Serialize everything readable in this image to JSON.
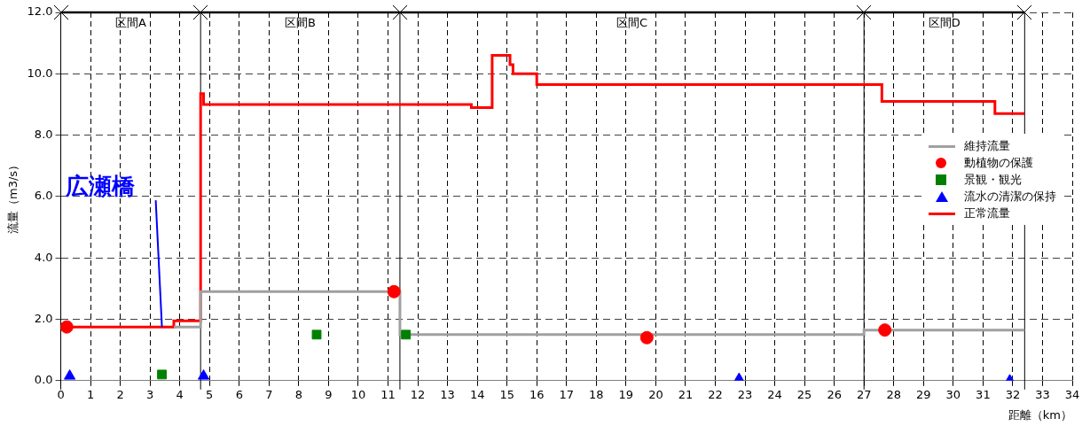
{
  "chart_data": {
    "type": "scatter",
    "xlabel": "距離（km）",
    "ylabel": "流量（m3/s）",
    "xlim": [
      0,
      34
    ],
    "xticks": [
      0,
      1,
      2,
      3,
      4,
      5,
      6,
      7,
      8,
      9,
      10,
      11,
      12,
      13,
      14,
      15,
      16,
      17,
      18,
      19,
      20,
      21,
      22,
      23,
      24,
      25,
      26,
      27,
      28,
      29,
      30,
      31,
      32,
      33,
      34
    ],
    "ylim": [
      0,
      12
    ],
    "yticks": [
      {
        "value": 0,
        "label": "0.0"
      },
      {
        "value": 2,
        "label": "2.0"
      },
      {
        "value": 4,
        "label": "4.0"
      },
      {
        "value": 6,
        "label": "6.0"
      },
      {
        "value": 8,
        "label": "8.0"
      },
      {
        "value": 10,
        "label": "10.0"
      },
      {
        "value": 12,
        "label": "12.0"
      }
    ],
    "grid": true,
    "legend": "right",
    "ref_lines": [
      {
        "axis": "x",
        "value": 0,
        "color": "#000000"
      },
      {
        "axis": "x",
        "value": 4.7,
        "color": "#000000"
      },
      {
        "axis": "x",
        "value": 11.4,
        "color": "#000000"
      },
      {
        "axis": "x",
        "value": 27.0,
        "color": "#000000"
      },
      {
        "axis": "x",
        "value": 32.4,
        "color": "#000000"
      }
    ],
    "annotations": [
      {
        "text": "広瀬橋",
        "x": 3.4,
        "y": 1.75
      },
      "区間A",
      "区間B",
      "区間C",
      "区間D"
    ],
    "series": [
      {
        "name": "維持流量",
        "type": "step",
        "color": "#a0a0a0",
        "marker": "none",
        "x": [
          3.8,
          4.7,
          11.4,
          27.0,
          32.4
        ],
        "values": [
          1.75,
          2.9,
          1.5,
          1.65,
          1.65
        ]
      },
      {
        "name": "動植物の保護",
        "type": "scatter",
        "color": "#ff0000",
        "marker": "circle",
        "x": [
          0.2,
          11.2,
          19.7,
          27.7
        ],
        "values": [
          1.75,
          2.9,
          1.4,
          1.65
        ]
      },
      {
        "name": "景観・観光",
        "type": "scatter",
        "color": "#008000",
        "marker": "square",
        "x": [
          3.4,
          8.6,
          11.6
        ],
        "values": [
          0.2,
          1.5,
          1.5
        ]
      },
      {
        "name": "流水の清潔の保持",
        "type": "scatter",
        "color": "#0000ff",
        "marker": "triangle",
        "x": [
          0.3,
          4.8,
          22.8,
          31.9
        ],
        "values": [
          0.15,
          0.15,
          0.05,
          0.0
        ]
      },
      {
        "name": "正常流量",
        "type": "step",
        "color": "#ff0000",
        "marker": "none",
        "x": [
          0.2,
          3.8,
          4.7,
          4.8,
          13.8,
          14.5,
          15.1,
          15.2,
          16.0,
          27.6,
          31.4,
          32.4
        ],
        "values": [
          1.75,
          1.95,
          9.35,
          9.0,
          8.9,
          10.6,
          10.3,
          10.0,
          9.65,
          9.1,
          8.7,
          8.7
        ]
      }
    ]
  }
}
